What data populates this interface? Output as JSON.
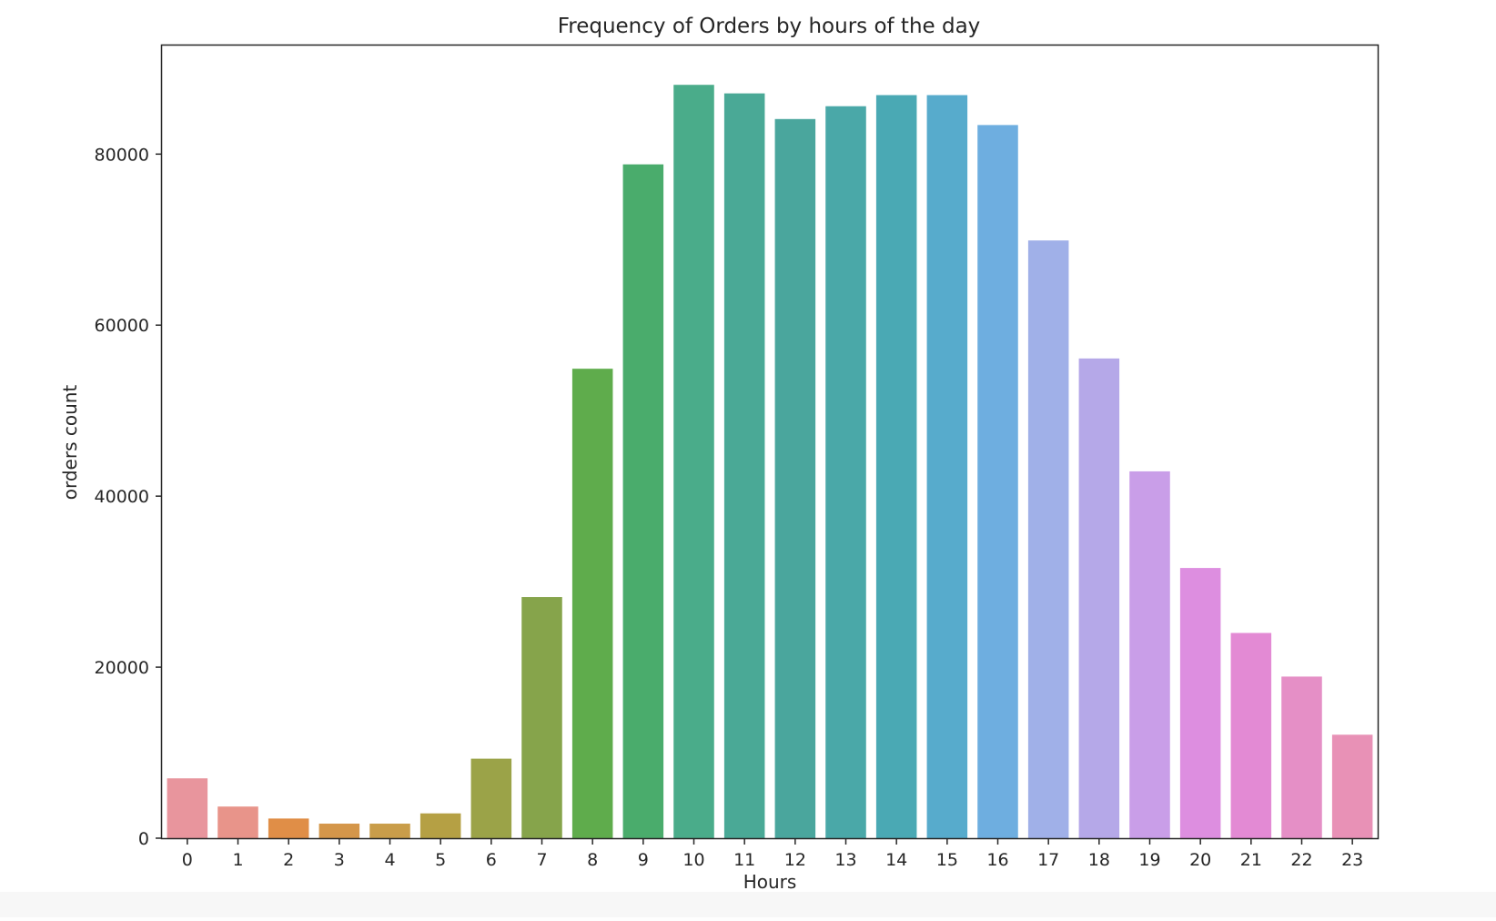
{
  "chart_data": {
    "type": "bar",
    "title": "Frequency of Orders by hours of the day",
    "xlabel": "Hours",
    "ylabel": "orders count",
    "categories": [
      "0",
      "1",
      "2",
      "3",
      "4",
      "5",
      "6",
      "7",
      "8",
      "9",
      "10",
      "11",
      "12",
      "13",
      "14",
      "15",
      "16",
      "17",
      "18",
      "19",
      "20",
      "21",
      "22",
      "23"
    ],
    "values": [
      7000,
      3700,
      2300,
      1700,
      1700,
      2900,
      9300,
      28200,
      54900,
      78800,
      88100,
      87100,
      84100,
      85600,
      86900,
      86900,
      83400,
      69900,
      56100,
      42900,
      31600,
      24000,
      18900,
      12100
    ],
    "ylim": [
      0,
      92700
    ],
    "yticks": [
      0,
      20000,
      40000,
      60000,
      80000
    ],
    "grid": false,
    "colors": [
      "#e8959d",
      "#e8948a",
      "#e08e47",
      "#d4964a",
      "#c99d4a",
      "#b5a044",
      "#9ba348",
      "#86a44b",
      "#5fac4c",
      "#4aac6c",
      "#4aac8a",
      "#4aa996",
      "#4aa69d",
      "#4aa8a8",
      "#4aa9b4",
      "#57abcc",
      "#6eaee0",
      "#a0b0e8",
      "#b5a8e8",
      "#c99ee8",
      "#dd8ee0",
      "#e38ad4",
      "#e58fc6",
      "#e891b6"
    ]
  }
}
